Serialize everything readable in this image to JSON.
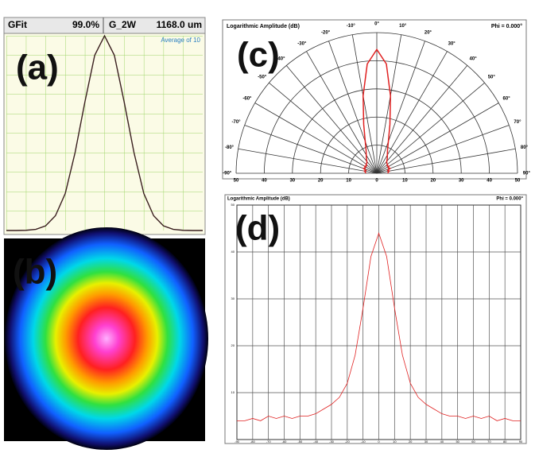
{
  "chart_data": [
    {
      "type": "line",
      "label": "(a)",
      "header": [
        "GFit",
        "99.0%",
        "G_2W",
        "1168.0 um"
      ],
      "note": "Average of 10",
      "x": [
        0,
        5,
        10,
        15,
        20,
        25,
        30,
        35,
        40,
        45,
        50,
        55,
        60,
        65,
        70,
        75,
        80,
        85,
        90,
        95,
        100
      ],
      "values": [
        0,
        0,
        0.1,
        0.6,
        2.4,
        7.6,
        19,
        40,
        66,
        90,
        100,
        90,
        66,
        40,
        19,
        7.6,
        2.4,
        0.6,
        0.1,
        0,
        0
      ],
      "xlim": [
        0,
        100
      ],
      "ylim": [
        0,
        100
      ],
      "color": "#3a1f1f",
      "grid": true
    },
    {
      "type": "image",
      "label": "(b)"
    },
    {
      "type": "polar",
      "label": "(c)",
      "title": "Logarithmic Amplitude (dB)",
      "subtitle": "Phi = 0.000°",
      "x": [
        -90,
        -85,
        -80,
        -75,
        -70,
        -65,
        -60,
        -55,
        -50,
        -45,
        -40,
        -35,
        -30,
        -25,
        -20,
        -15,
        -10,
        -5,
        0,
        5,
        10,
        15,
        20,
        25,
        30,
        35,
        40,
        45,
        50,
        55,
        60,
        65,
        70,
        75,
        80,
        85,
        90
      ],
      "values": [
        4,
        4,
        4.5,
        4,
        5,
        4.5,
        5,
        4.5,
        5,
        5,
        5.5,
        6.5,
        7.5,
        9,
        12,
        18,
        28,
        39,
        44,
        39,
        28,
        18,
        12,
        9,
        7.5,
        6.5,
        5.5,
        5,
        5,
        4.5,
        5,
        4.5,
        5,
        4,
        4.5,
        4,
        4
      ],
      "ylim": [
        0,
        50
      ],
      "yticks": [
        0,
        10,
        20,
        30,
        40,
        50
      ],
      "xticks": [
        {
          "value": -90,
          "label": "-90°"
        },
        {
          "value": -80,
          "label": "-80°"
        },
        {
          "value": -70,
          "label": "-70°"
        },
        {
          "value": -60,
          "label": "-60°"
        },
        {
          "value": -50,
          "label": "-50°"
        },
        {
          "value": -40,
          "label": "-40°"
        },
        {
          "value": -30,
          "label": "-30°"
        },
        {
          "value": -20,
          "label": "-20°"
        },
        {
          "value": -10,
          "label": "-10°"
        },
        {
          "value": 0,
          "label": "0°"
        },
        {
          "value": 10,
          "label": "10°"
        },
        {
          "value": 20,
          "label": "20°"
        },
        {
          "value": 30,
          "label": "30°"
        },
        {
          "value": 40,
          "label": "40°"
        },
        {
          "value": 50,
          "label": "50°"
        },
        {
          "value": 60,
          "label": "60°"
        },
        {
          "value": 70,
          "label": "70°"
        },
        {
          "value": 80,
          "label": "80°"
        },
        {
          "value": 90,
          "label": "90°"
        }
      ],
      "color": "#e02020"
    },
    {
      "type": "line",
      "label": "(d)",
      "title": "Logarithmic Amplitude (dB)",
      "subtitle": "Phi = 0.000°",
      "x": [
        -90,
        -85,
        -80,
        -75,
        -70,
        -65,
        -60,
        -55,
        -50,
        -45,
        -40,
        -35,
        -30,
        -25,
        -20,
        -15,
        -10,
        -5,
        0,
        5,
        10,
        15,
        20,
        25,
        30,
        35,
        40,
        45,
        50,
        55,
        60,
        65,
        70,
        75,
        80,
        85,
        90
      ],
      "values": [
        4,
        4,
        4.5,
        4,
        5,
        4.5,
        5,
        4.5,
        5,
        5,
        5.5,
        6.5,
        7.5,
        9,
        12,
        18,
        28,
        39,
        44,
        39,
        28,
        18,
        12,
        9,
        7.5,
        6.5,
        5.5,
        5,
        5,
        4.5,
        5,
        4.5,
        5,
        4,
        4.5,
        4,
        4
      ],
      "xlim": [
        -90,
        90
      ],
      "ylim": [
        0,
        50
      ],
      "xticks": [
        -90,
        -80,
        -70,
        -60,
        -50,
        -40,
        -30,
        -20,
        -10,
        0,
        10,
        20,
        30,
        40,
        50,
        60,
        70,
        80,
        90
      ],
      "yticks": [
        10,
        20,
        30,
        40,
        50
      ],
      "color": "#e02020",
      "grid": true
    }
  ]
}
